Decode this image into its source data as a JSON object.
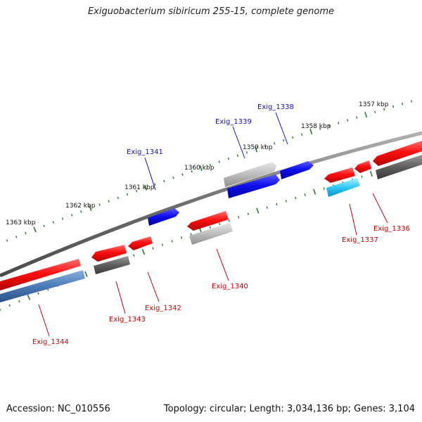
{
  "title": "Exiguobacterium sibiricum 255-15, complete genome",
  "accession": "Accession: NC_010556",
  "summary": "Topology: circular; Length: 3,034,136 bp; Genes: 3,104",
  "colors": {
    "backbone": "#7a7a7a",
    "ticks": "#2a7a2a",
    "label_forward": "#1010cc",
    "label_reverse": "#cc0000"
  },
  "ticks": [
    {
      "label": "1357 kbp"
    },
    {
      "label": "1358 kbp"
    },
    {
      "label": "1359 kbp"
    },
    {
      "label": "1360 kbp"
    },
    {
      "label": "1361 kbp"
    },
    {
      "label": "1362 kbp"
    },
    {
      "label": "1363 kbp"
    }
  ],
  "genes": [
    {
      "name": "Exig_1336",
      "strand": "reverse"
    },
    {
      "name": "Exig_1337",
      "strand": "reverse"
    },
    {
      "name": "Exig_1338",
      "strand": "forward"
    },
    {
      "name": "Exig_1339",
      "strand": "forward"
    },
    {
      "name": "Exig_1340",
      "strand": "reverse"
    },
    {
      "name": "Exig_1341",
      "strand": "forward"
    },
    {
      "name": "Exig_1342",
      "strand": "reverse"
    },
    {
      "name": "Exig_1343",
      "strand": "reverse"
    },
    {
      "name": "Exig_1344",
      "strand": "reverse"
    }
  ]
}
